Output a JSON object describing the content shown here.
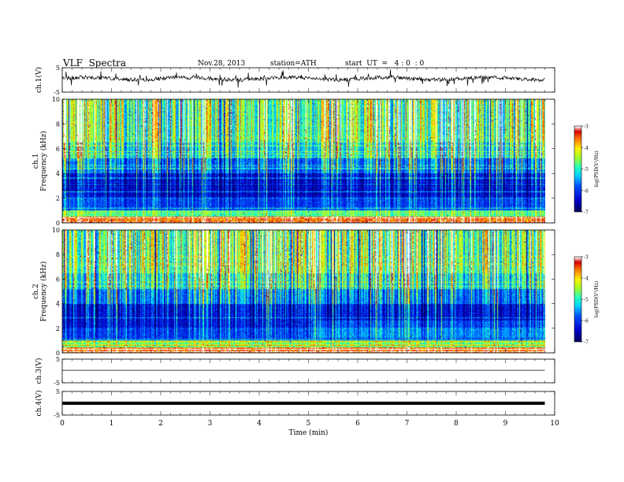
{
  "header": {
    "title": "VLF  Spectra",
    "date": "Nov.28, 2013",
    "station": "station=ATH",
    "start": "start  UT  =   4 : 0  : 0"
  },
  "chart_data": [
    {
      "type": "line",
      "name": "ch1-waveform",
      "ylabel": "ch.1(V)",
      "ylim": [
        -5,
        5
      ],
      "yticks": [
        "5",
        "-5"
      ],
      "xlim": [
        0,
        10
      ]
    },
    {
      "type": "heatmap",
      "name": "ch1-spectrogram",
      "ylabel": [
        "ch.1",
        "Frequency  (kHz)"
      ],
      "ylim": [
        0,
        10
      ],
      "yticks": [
        "0",
        "2",
        "4",
        "6",
        "8",
        "10"
      ],
      "xlim": [
        0,
        9.8
      ],
      "colorbar": {
        "label": "log(PSD(V²/Hz)",
        "range": [
          -7,
          -3
        ],
        "ticks": [
          "-3",
          "-4",
          "-5",
          "-6",
          "-7"
        ]
      }
    },
    {
      "type": "heatmap",
      "name": "ch2-spectrogram",
      "ylabel": [
        "ch.2",
        "Frequency  (kHz)"
      ],
      "ylim": [
        0,
        10
      ],
      "yticks": [
        "0",
        "2",
        "4",
        "6",
        "8",
        "10"
      ],
      "xlim": [
        0,
        9.8
      ],
      "colorbar": {
        "label": "log(PSD(V²/Hz)",
        "range": [
          -7,
          -3
        ],
        "ticks": [
          "-3",
          "-4",
          "-5",
          "-6",
          "-7"
        ]
      }
    },
    {
      "type": "line",
      "name": "ch3-waveform",
      "ylabel": "ch.3(V)",
      "ylim": [
        -5,
        5
      ],
      "yticks": [
        "5",
        "-5"
      ],
      "xlim": [
        0,
        10
      ]
    },
    {
      "type": "line",
      "name": "ch4-waveform",
      "ylabel": "ch.4(V)",
      "ylim": [
        -5,
        5
      ],
      "yticks": [
        "5",
        "-5"
      ],
      "xlim": [
        0,
        10
      ],
      "xlabel": "Time  (min)",
      "xticks": [
        "0",
        "1",
        "2",
        "3",
        "4",
        "5",
        "6",
        "7",
        "8",
        "9",
        "10"
      ]
    }
  ]
}
